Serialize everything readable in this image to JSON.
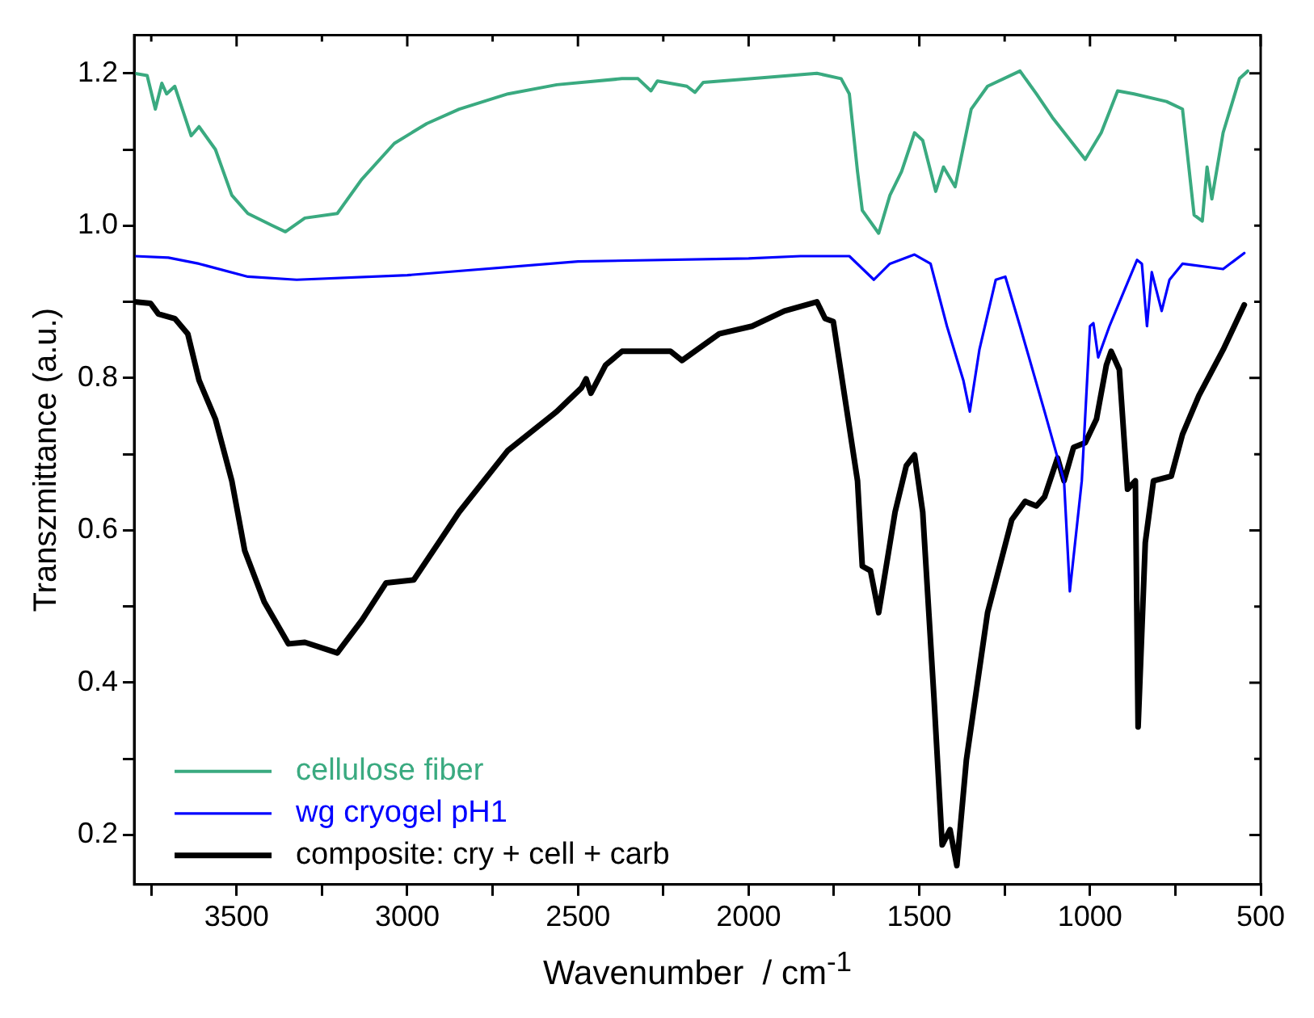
{
  "chart_data": {
    "type": "line",
    "xlabel": "Wavenumber  / cm$^{-1}$",
    "ylabel": "Transzmittance (a.u.)",
    "xlim": [
      3800,
      500
    ],
    "ylim": [
      0.135,
      1.25
    ],
    "xticks": [
      {
        "value": 3750,
        "label": null
      },
      3500,
      {
        "value": 3250,
        "label": null
      },
      3000,
      {
        "value": 2750,
        "label": null
      },
      2500,
      {
        "value": 2250,
        "label": null
      },
      2000,
      {
        "value": 1750,
        "label": null
      },
      1500,
      {
        "value": 1250,
        "label": null
      },
      1000,
      {
        "value": 750,
        "label": null
      },
      500
    ],
    "yticks": [
      0.2,
      {
        "value": 0.3,
        "label": null
      },
      0.4,
      {
        "value": 0.5,
        "label": null
      },
      0.6,
      {
        "value": 0.7,
        "label": null
      },
      0.8,
      {
        "value": 0.9,
        "label": null
      },
      {
        "value": 1,
        "label": "1.0"
      },
      {
        "value": 1.1,
        "label": null
      },
      1.2
    ],
    "grid": false,
    "legend": "bottom left",
    "marker": "none",
    "line_style": "solid",
    "series": [
      {
        "name": "cellulose fiber",
        "color": "#3aaa80",
        "x": [
          3800,
          3762,
          3738,
          3719,
          3705,
          3681,
          3633,
          3610,
          3562,
          3514,
          3467,
          3395,
          3357,
          3300,
          3205,
          3133,
          3038,
          2943,
          2848,
          2705,
          2562,
          2371,
          2324,
          2286,
          2267,
          2181,
          2157,
          2133,
          1990,
          1800,
          1729,
          1705,
          1681,
          1667,
          1619,
          1586,
          1552,
          1514,
          1490,
          1452,
          1429,
          1395,
          1348,
          1300,
          1205,
          1157,
          1110,
          1014,
          967,
          919,
          871,
          776,
          729,
          695,
          671,
          657,
          643,
          610,
          562,
          538
        ],
        "values": [
          1.2,
          1.197,
          1.153,
          1.187,
          1.173,
          1.183,
          1.118,
          1.13,
          1.1,
          1.04,
          1.016,
          1.0,
          0.992,
          1.01,
          1.016,
          1.061,
          1.108,
          1.134,
          1.153,
          1.173,
          1.185,
          1.193,
          1.193,
          1.177,
          1.19,
          1.183,
          1.175,
          1.188,
          1.193,
          1.2,
          1.193,
          1.173,
          1.071,
          1.02,
          0.99,
          1.04,
          1.071,
          1.122,
          1.112,
          1.045,
          1.077,
          1.051,
          1.153,
          1.183,
          1.203,
          1.173,
          1.142,
          1.087,
          1.122,
          1.177,
          1.173,
          1.163,
          1.153,
          1.014,
          1.006,
          1.077,
          1.035,
          1.122,
          1.193,
          1.203
        ]
      },
      {
        "name": "wg cryogel pH1",
        "color": "#0000ff",
        "x": [
          3800,
          3700,
          3610,
          3467,
          3324,
          3000,
          2500,
          2000,
          1848,
          1705,
          1633,
          1586,
          1514,
          1467,
          1419,
          1371,
          1352,
          1324,
          1276,
          1248,
          1205,
          1133,
          1076,
          1059,
          1024,
          1000,
          990,
          976,
          943,
          905,
          862,
          848,
          833,
          819,
          790,
          767,
          729,
          610,
          548
        ],
        "values": [
          0.96,
          0.958,
          0.95,
          0.933,
          0.929,
          0.935,
          0.953,
          0.957,
          0.96,
          0.96,
          0.929,
          0.95,
          0.962,
          0.95,
          0.868,
          0.797,
          0.756,
          0.837,
          0.929,
          0.933,
          0.868,
          0.756,
          0.665,
          0.52,
          0.665,
          0.868,
          0.872,
          0.827,
          0.868,
          0.909,
          0.955,
          0.95,
          0.868,
          0.939,
          0.888,
          0.929,
          0.95,
          0.943,
          0.964
        ]
      },
      {
        "name": "composite: cry + cell + carb",
        "color": "#000000",
        "x": [
          3800,
          3752,
          3729,
          3681,
          3643,
          3610,
          3562,
          3514,
          3476,
          3419,
          3348,
          3300,
          3205,
          3133,
          3062,
          2981,
          2848,
          2705,
          2562,
          2490,
          2476,
          2462,
          2419,
          2371,
          2229,
          2195,
          2086,
          1990,
          1895,
          1800,
          1776,
          1752,
          1681,
          1667,
          1643,
          1619,
          1571,
          1538,
          1514,
          1490,
          1457,
          1433,
          1410,
          1390,
          1362,
          1300,
          1229,
          1190,
          1157,
          1133,
          1095,
          1076,
          1048,
          1014,
          981,
          952,
          938,
          914,
          890,
          867,
          859,
          838,
          814,
          762,
          729,
          681,
          610,
          548
        ],
        "values": [
          0.9,
          0.898,
          0.884,
          0.878,
          0.858,
          0.797,
          0.746,
          0.665,
          0.573,
          0.506,
          0.451,
          0.453,
          0.439,
          0.482,
          0.531,
          0.535,
          0.624,
          0.705,
          0.756,
          0.787,
          0.799,
          0.78,
          0.817,
          0.835,
          0.835,
          0.823,
          0.858,
          0.868,
          0.888,
          0.9,
          0.878,
          0.874,
          0.665,
          0.553,
          0.547,
          0.492,
          0.624,
          0.685,
          0.699,
          0.624,
          0.38,
          0.187,
          0.207,
          0.16,
          0.299,
          0.492,
          0.614,
          0.638,
          0.632,
          0.644,
          0.695,
          0.665,
          0.709,
          0.715,
          0.746,
          0.817,
          0.835,
          0.811,
          0.654,
          0.665,
          0.342,
          0.584,
          0.665,
          0.671,
          0.726,
          0.777,
          0.837,
          0.896
        ]
      }
    ]
  }
}
